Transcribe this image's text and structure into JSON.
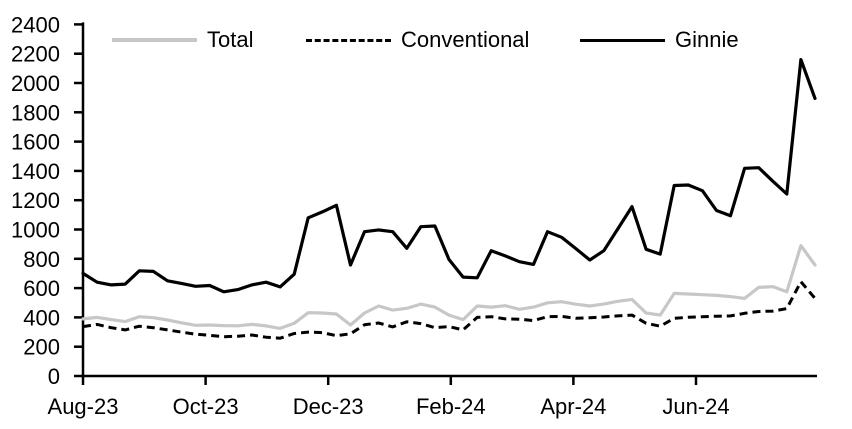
{
  "chart_data": {
    "type": "line",
    "title": "",
    "xlabel": "",
    "ylabel": "",
    "x_unit": "weekly",
    "x_tick_labels": [
      "Aug-23",
      "Oct-23",
      "Dec-23",
      "Feb-24",
      "Apr-24",
      "Jun-24"
    ],
    "x_tick_month_offsets": [
      0,
      2,
      4,
      6,
      8,
      10
    ],
    "ylim": [
      0,
      2400
    ],
    "y_tick_step": 200,
    "y_tick_labels": [
      "0",
      "200",
      "400",
      "600",
      "800",
      "1000",
      "1200",
      "1400",
      "1600",
      "1800",
      "2000",
      "2200",
      "2400"
    ],
    "grid": "off",
    "legend_position": "top",
    "axis_color": "#000000",
    "series": [
      {
        "name": "Total",
        "color": "#c7c7c7",
        "style": "solid",
        "values": [
          390,
          400,
          385,
          371,
          405,
          398,
          382,
          363,
          346,
          348,
          344,
          343,
          352,
          342,
          325,
          360,
          432,
          430,
          423,
          348,
          430,
          478,
          450,
          462,
          491,
          470,
          416,
          385,
          478,
          470,
          480,
          455,
          470,
          500,
          507,
          490,
          478,
          491,
          510,
          523,
          430,
          416,
          564,
          560,
          555,
          550,
          542,
          530,
          605,
          610,
          575,
          890,
          758
        ]
      },
      {
        "name": "Conventional",
        "color": "#000000",
        "style": "dashed",
        "values": [
          337,
          352,
          330,
          315,
          340,
          330,
          315,
          300,
          285,
          278,
          268,
          272,
          280,
          265,
          258,
          290,
          300,
          296,
          275,
          288,
          350,
          362,
          335,
          370,
          358,
          330,
          337,
          315,
          400,
          405,
          390,
          388,
          378,
          405,
          407,
          394,
          398,
          403,
          410,
          416,
          360,
          340,
          394,
          401,
          405,
          408,
          410,
          428,
          440,
          443,
          460,
          644,
          530
        ]
      },
      {
        "name": "Ginnie",
        "color": "#000000",
        "style": "solid",
        "values": [
          700,
          640,
          622,
          627,
          718,
          714,
          650,
          632,
          612,
          618,
          575,
          590,
          622,
          640,
          608,
          695,
          1080,
          1120,
          1165,
          758,
          985,
          997,
          985,
          872,
          1019,
          1024,
          795,
          675,
          670,
          855,
          820,
          780,
          762,
          985,
          947,
          870,
          792,
          855,
          1005,
          1156,
          865,
          832,
          1300,
          1304,
          1265,
          1130,
          1094,
          1418,
          1422,
          1330,
          1242,
          2160,
          1895
        ]
      }
    ]
  }
}
